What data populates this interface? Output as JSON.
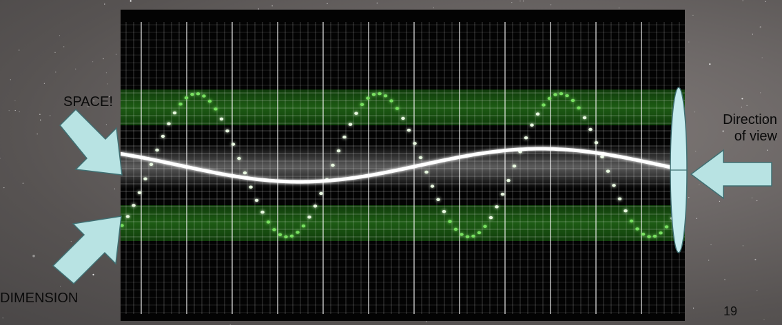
{
  "labels": {
    "space": "SPACE!",
    "dimension": "DIMENSION",
    "direction_line1": "Direction",
    "direction_line2": "of view"
  },
  "slide_number": "19",
  "colors": {
    "arrow_fill": "#b8e3e3",
    "arrow_stroke": "#3f6f72",
    "lens_fill": "#c6ebee",
    "wave_green": "#78e060",
    "curve_white": "#ffffff",
    "band_green": "#1d5a14",
    "panel_bg": "#030303"
  },
  "icons": {
    "arrow_space": "arrow-down-right-icon",
    "arrow_dimension": "arrow-up-right-icon",
    "arrow_direction": "arrow-left-icon",
    "lens": "lens-ellipse-icon"
  }
}
